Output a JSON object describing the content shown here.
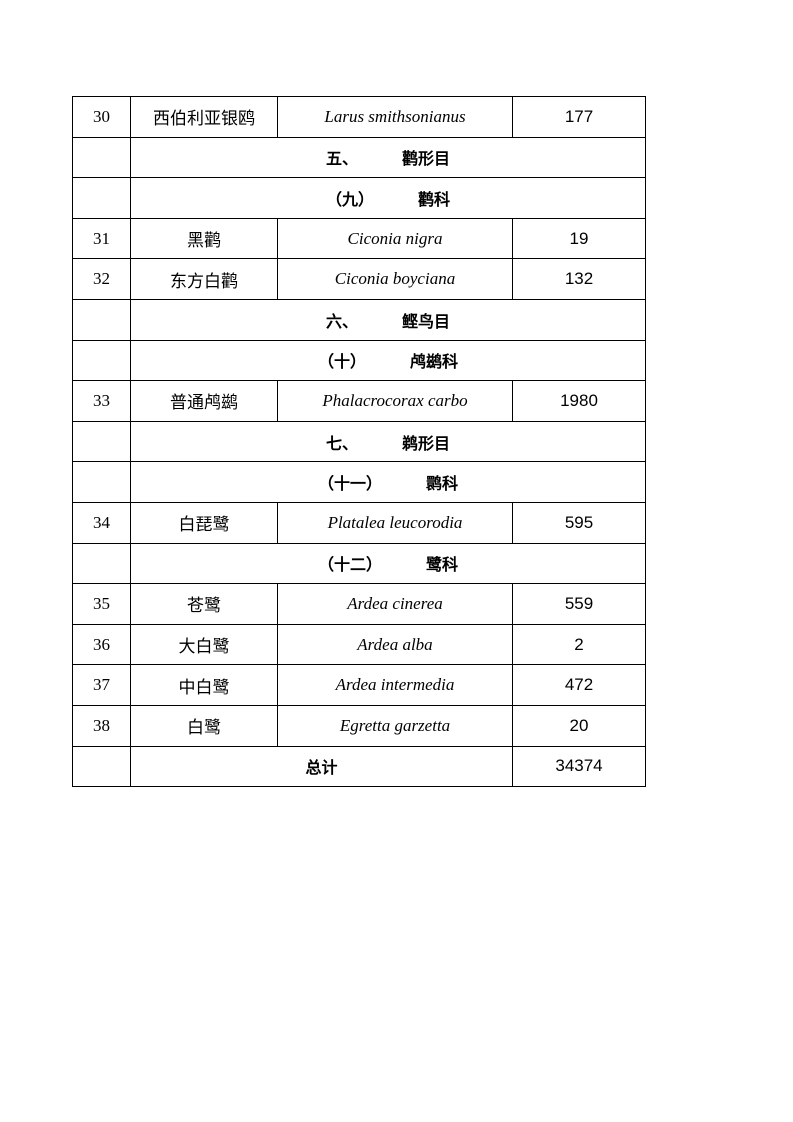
{
  "rows": [
    {
      "type": "species",
      "no": "30",
      "cn": "西伯利亚银鸥",
      "sci": "Larus smithsonianus",
      "count": "177"
    },
    {
      "type": "heading",
      "prefix": "五、",
      "name": "鹳形目"
    },
    {
      "type": "heading",
      "prefix": "（九）",
      "name": "鹳科"
    },
    {
      "type": "species",
      "no": "31",
      "cn": "黑鹳",
      "sci": "Ciconia nigra",
      "count": "19"
    },
    {
      "type": "species",
      "no": "32",
      "cn": "东方白鹳",
      "sci": "Ciconia boyciana",
      "count": "132"
    },
    {
      "type": "heading",
      "prefix": "六、",
      "name": "鲣鸟目"
    },
    {
      "type": "heading",
      "prefix": "（十）",
      "name": "鸬鹚科"
    },
    {
      "type": "species",
      "no": "33",
      "cn": "普通鸬鹚",
      "sci": "Phalacrocorax carbo",
      "count": "1980"
    },
    {
      "type": "heading",
      "prefix": "七、",
      "name": "鹈形目"
    },
    {
      "type": "heading",
      "prefix": "（十一）",
      "name": "鹮科"
    },
    {
      "type": "species",
      "no": "34",
      "cn": "白琵鹭",
      "sci": "Platalea leucorodia",
      "count": "595"
    },
    {
      "type": "heading",
      "prefix": "（十二）",
      "name": "鹭科"
    },
    {
      "type": "species",
      "no": "35",
      "cn": "苍鹭",
      "sci": "Ardea cinerea",
      "count": "559"
    },
    {
      "type": "species",
      "no": "36",
      "cn": "大白鹭",
      "sci": "Ardea alba",
      "count": "2"
    },
    {
      "type": "species",
      "no": "37",
      "cn": "中白鹭",
      "sci": "Ardea intermedia",
      "count": "472"
    },
    {
      "type": "species",
      "no": "38",
      "cn": "白鹭",
      "sci": "Egretta garzetta",
      "count": "20"
    },
    {
      "type": "total",
      "label": "总计",
      "count": "34374"
    }
  ]
}
